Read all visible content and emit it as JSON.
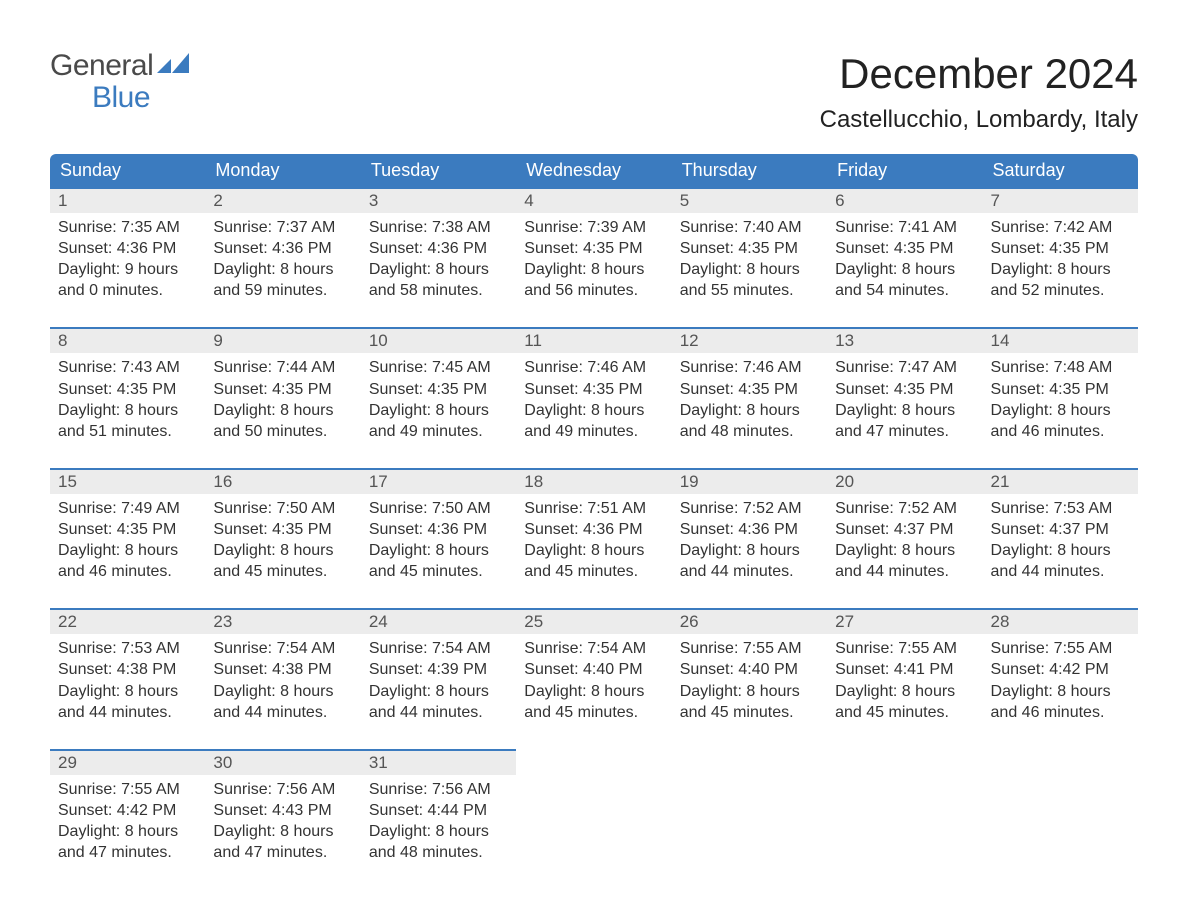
{
  "logo": {
    "word1": "General",
    "word2": "Blue"
  },
  "title": "December 2024",
  "location": "Castellucchio, Lombardy, Italy",
  "columns": [
    "Sunday",
    "Monday",
    "Tuesday",
    "Wednesday",
    "Thursday",
    "Friday",
    "Saturday"
  ],
  "colors": {
    "header_bg": "#3b7bbf",
    "header_text": "#ffffff",
    "daynum_bg": "#ececec",
    "accent_line": "#3b7bbf",
    "logo_gray": "#4a4a4a",
    "logo_blue": "#3b7bbf",
    "body_text": "#333333"
  },
  "typography": {
    "title_fontsize": 42,
    "location_fontsize": 24,
    "header_fontsize": 18,
    "daynum_fontsize": 17,
    "body_fontsize": 16
  },
  "weeks": [
    [
      {
        "n": "1",
        "sunrise": "7:35 AM",
        "sunset": "4:36 PM",
        "dl1": "Daylight: 9 hours",
        "dl2": "and 0 minutes."
      },
      {
        "n": "2",
        "sunrise": "7:37 AM",
        "sunset": "4:36 PM",
        "dl1": "Daylight: 8 hours",
        "dl2": "and 59 minutes."
      },
      {
        "n": "3",
        "sunrise": "7:38 AM",
        "sunset": "4:36 PM",
        "dl1": "Daylight: 8 hours",
        "dl2": "and 58 minutes."
      },
      {
        "n": "4",
        "sunrise": "7:39 AM",
        "sunset": "4:35 PM",
        "dl1": "Daylight: 8 hours",
        "dl2": "and 56 minutes."
      },
      {
        "n": "5",
        "sunrise": "7:40 AM",
        "sunset": "4:35 PM",
        "dl1": "Daylight: 8 hours",
        "dl2": "and 55 minutes."
      },
      {
        "n": "6",
        "sunrise": "7:41 AM",
        "sunset": "4:35 PM",
        "dl1": "Daylight: 8 hours",
        "dl2": "and 54 minutes."
      },
      {
        "n": "7",
        "sunrise": "7:42 AM",
        "sunset": "4:35 PM",
        "dl1": "Daylight: 8 hours",
        "dl2": "and 52 minutes."
      }
    ],
    [
      {
        "n": "8",
        "sunrise": "7:43 AM",
        "sunset": "4:35 PM",
        "dl1": "Daylight: 8 hours",
        "dl2": "and 51 minutes."
      },
      {
        "n": "9",
        "sunrise": "7:44 AM",
        "sunset": "4:35 PM",
        "dl1": "Daylight: 8 hours",
        "dl2": "and 50 minutes."
      },
      {
        "n": "10",
        "sunrise": "7:45 AM",
        "sunset": "4:35 PM",
        "dl1": "Daylight: 8 hours",
        "dl2": "and 49 minutes."
      },
      {
        "n": "11",
        "sunrise": "7:46 AM",
        "sunset": "4:35 PM",
        "dl1": "Daylight: 8 hours",
        "dl2": "and 49 minutes."
      },
      {
        "n": "12",
        "sunrise": "7:46 AM",
        "sunset": "4:35 PM",
        "dl1": "Daylight: 8 hours",
        "dl2": "and 48 minutes."
      },
      {
        "n": "13",
        "sunrise": "7:47 AM",
        "sunset": "4:35 PM",
        "dl1": "Daylight: 8 hours",
        "dl2": "and 47 minutes."
      },
      {
        "n": "14",
        "sunrise": "7:48 AM",
        "sunset": "4:35 PM",
        "dl1": "Daylight: 8 hours",
        "dl2": "and 46 minutes."
      }
    ],
    [
      {
        "n": "15",
        "sunrise": "7:49 AM",
        "sunset": "4:35 PM",
        "dl1": "Daylight: 8 hours",
        "dl2": "and 46 minutes."
      },
      {
        "n": "16",
        "sunrise": "7:50 AM",
        "sunset": "4:35 PM",
        "dl1": "Daylight: 8 hours",
        "dl2": "and 45 minutes."
      },
      {
        "n": "17",
        "sunrise": "7:50 AM",
        "sunset": "4:36 PM",
        "dl1": "Daylight: 8 hours",
        "dl2": "and 45 minutes."
      },
      {
        "n": "18",
        "sunrise": "7:51 AM",
        "sunset": "4:36 PM",
        "dl1": "Daylight: 8 hours",
        "dl2": "and 45 minutes."
      },
      {
        "n": "19",
        "sunrise": "7:52 AM",
        "sunset": "4:36 PM",
        "dl1": "Daylight: 8 hours",
        "dl2": "and 44 minutes."
      },
      {
        "n": "20",
        "sunrise": "7:52 AM",
        "sunset": "4:37 PM",
        "dl1": "Daylight: 8 hours",
        "dl2": "and 44 minutes."
      },
      {
        "n": "21",
        "sunrise": "7:53 AM",
        "sunset": "4:37 PM",
        "dl1": "Daylight: 8 hours",
        "dl2": "and 44 minutes."
      }
    ],
    [
      {
        "n": "22",
        "sunrise": "7:53 AM",
        "sunset": "4:38 PM",
        "dl1": "Daylight: 8 hours",
        "dl2": "and 44 minutes."
      },
      {
        "n": "23",
        "sunrise": "7:54 AM",
        "sunset": "4:38 PM",
        "dl1": "Daylight: 8 hours",
        "dl2": "and 44 minutes."
      },
      {
        "n": "24",
        "sunrise": "7:54 AM",
        "sunset": "4:39 PM",
        "dl1": "Daylight: 8 hours",
        "dl2": "and 44 minutes."
      },
      {
        "n": "25",
        "sunrise": "7:54 AM",
        "sunset": "4:40 PM",
        "dl1": "Daylight: 8 hours",
        "dl2": "and 45 minutes."
      },
      {
        "n": "26",
        "sunrise": "7:55 AM",
        "sunset": "4:40 PM",
        "dl1": "Daylight: 8 hours",
        "dl2": "and 45 minutes."
      },
      {
        "n": "27",
        "sunrise": "7:55 AM",
        "sunset": "4:41 PM",
        "dl1": "Daylight: 8 hours",
        "dl2": "and 45 minutes."
      },
      {
        "n": "28",
        "sunrise": "7:55 AM",
        "sunset": "4:42 PM",
        "dl1": "Daylight: 8 hours",
        "dl2": "and 46 minutes."
      }
    ],
    [
      {
        "n": "29",
        "sunrise": "7:55 AM",
        "sunset": "4:42 PM",
        "dl1": "Daylight: 8 hours",
        "dl2": "and 47 minutes."
      },
      {
        "n": "30",
        "sunrise": "7:56 AM",
        "sunset": "4:43 PM",
        "dl1": "Daylight: 8 hours",
        "dl2": "and 47 minutes."
      },
      {
        "n": "31",
        "sunrise": "7:56 AM",
        "sunset": "4:44 PM",
        "dl1": "Daylight: 8 hours",
        "dl2": "and 48 minutes."
      },
      null,
      null,
      null,
      null
    ]
  ],
  "labels": {
    "sunrise": "Sunrise: ",
    "sunset": "Sunset: "
  }
}
